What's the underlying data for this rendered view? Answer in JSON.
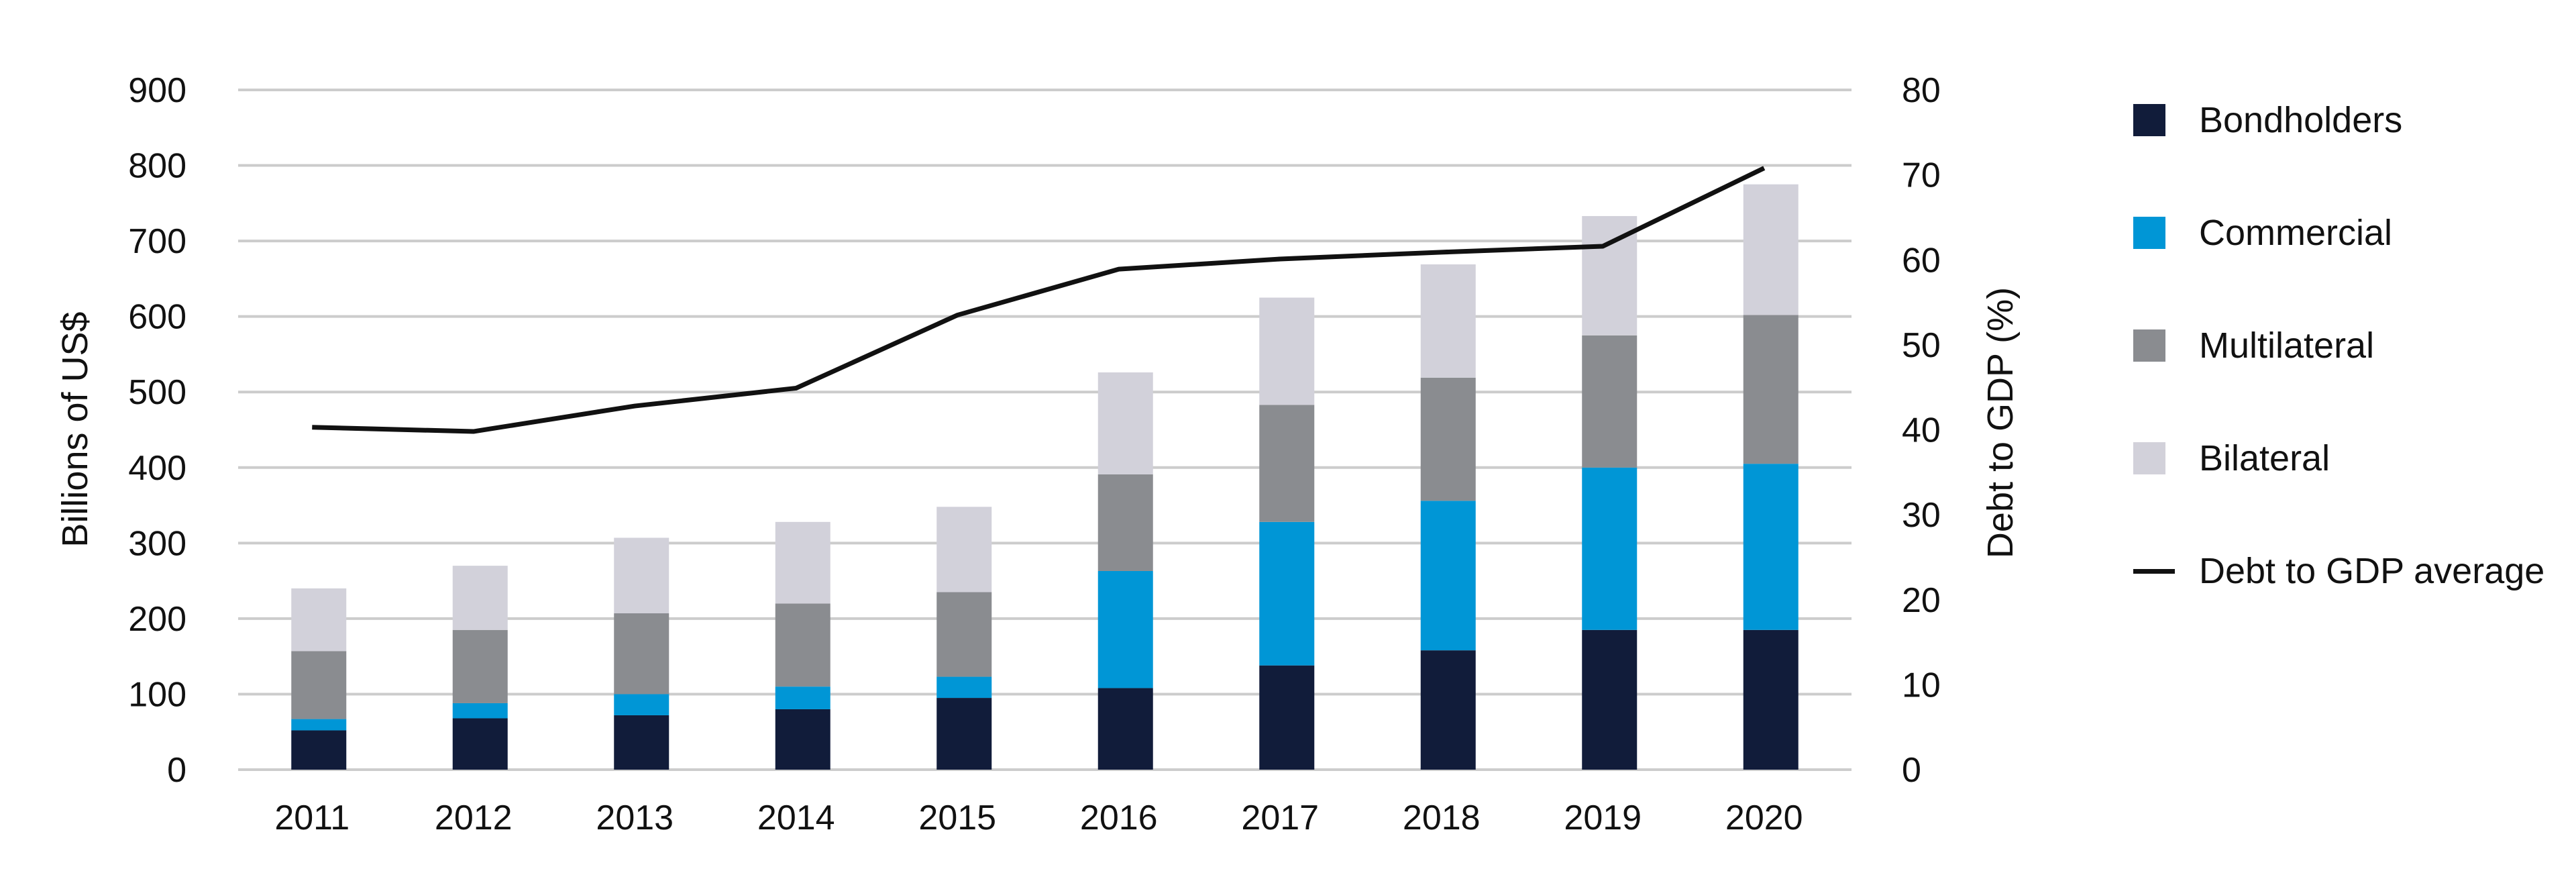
{
  "chart_data": {
    "type": "bar",
    "stacked": true,
    "categories": [
      "2011",
      "2012",
      "2013",
      "2014",
      "2015",
      "2016",
      "2017",
      "2018",
      "2019",
      "2020"
    ],
    "series": [
      {
        "name": "Bondholders",
        "color": "#111c3a",
        "values": [
          52,
          68,
          72,
          80,
          95,
          108,
          138,
          158,
          185,
          185
        ]
      },
      {
        "name": "Commercial",
        "color": "#0096d6",
        "values": [
          15,
          20,
          28,
          30,
          28,
          155,
          190,
          198,
          215,
          220
        ]
      },
      {
        "name": "Multilateral",
        "color": "#8a8c90",
        "values": [
          90,
          97,
          107,
          110,
          112,
          128,
          155,
          163,
          175,
          197
        ]
      },
      {
        "name": "Bilateral",
        "color": "#d2d1da",
        "values": [
          83,
          85,
          100,
          108,
          113,
          135,
          142,
          150,
          158,
          173
        ]
      }
    ],
    "line_series": {
      "name": "Debt to GDP average",
      "axis": "right",
      "color": "#111111",
      "values": [
        40.3,
        39.8,
        42.8,
        44.9,
        53.5,
        58.9,
        60.1,
        60.9,
        61.6,
        70.8
      ]
    },
    "ylabel": "Billions of US$",
    "y2label": "Debt to GDP (%)",
    "ylim": [
      0,
      900
    ],
    "yticks": [
      "0",
      "100",
      "200",
      "300",
      "400",
      "500",
      "600",
      "700",
      "800",
      "900"
    ],
    "y2lim": [
      0,
      80
    ],
    "y2ticks": [
      "0",
      "10",
      "20",
      "30",
      "40",
      "50",
      "60",
      "70",
      "80"
    ],
    "grid": true,
    "legend_position": "right"
  }
}
